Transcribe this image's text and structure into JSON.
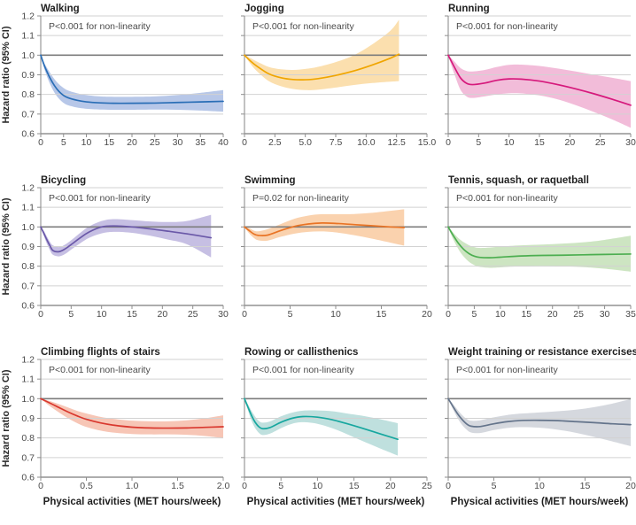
{
  "figure": {
    "ylabel": "Hazard ratio (95% CI)",
    "xlabel": "Physical activities (MET hours/week)",
    "y_tick_labels": [
      "1.2",
      "1.1",
      "1.0",
      "0.9",
      "0.8",
      "0.7",
      "0.6"
    ],
    "ylim": [
      0.6,
      1.2
    ],
    "reference_line": 1.0,
    "grid_color": "#d2d2d2",
    "ref_line_color": "#7c7c7c",
    "axis_color": "#8f8f8f",
    "legend_position": "none",
    "grid": "horizontal-only"
  },
  "chart_data": [
    {
      "type": "line",
      "title": "Walking",
      "annotation": "P<0.001 for non-linearity",
      "line_color": "#2a6eb6",
      "band_color": "#b7c7e8",
      "xlim": [
        0,
        40
      ],
      "x_tick_labels": [
        "0",
        "5",
        "10",
        "15",
        "20",
        "25",
        "30",
        "35",
        "40"
      ],
      "x": [
        0,
        0.5,
        1,
        2,
        3,
        4,
        5,
        6,
        8,
        10,
        13,
        16,
        20,
        25,
        30,
        35,
        40
      ],
      "hr": [
        1.0,
        0.965,
        0.935,
        0.885,
        0.845,
        0.815,
        0.795,
        0.783,
        0.77,
        0.762,
        0.757,
        0.755,
        0.755,
        0.756,
        0.759,
        0.762,
        0.765
      ],
      "lower": [
        1.0,
        0.955,
        0.915,
        0.855,
        0.81,
        0.778,
        0.757,
        0.745,
        0.733,
        0.727,
        0.723,
        0.722,
        0.722,
        0.723,
        0.722,
        0.718,
        0.712
      ],
      "upper": [
        1.0,
        0.975,
        0.95,
        0.912,
        0.878,
        0.852,
        0.833,
        0.82,
        0.806,
        0.797,
        0.79,
        0.788,
        0.788,
        0.79,
        0.797,
        0.808,
        0.822
      ]
    },
    {
      "type": "line",
      "title": "Jogging",
      "annotation": "P<0.001 for non-linearity",
      "line_color": "#f0a500",
      "band_color": "#fbdfae",
      "xlim": [
        0,
        15
      ],
      "x_tick_labels": [
        "0",
        "2.5",
        "5.0",
        "7.5",
        "10.0",
        "12.5",
        "15.0"
      ],
      "x": [
        0,
        0.5,
        1,
        2,
        3,
        4,
        5,
        6,
        7.5,
        9,
        10.5,
        12,
        12.7
      ],
      "hr": [
        1.0,
        0.97,
        0.945,
        0.905,
        0.885,
        0.876,
        0.875,
        0.88,
        0.897,
        0.92,
        0.95,
        0.985,
        1.005
      ],
      "lower": [
        1.0,
        0.955,
        0.92,
        0.868,
        0.842,
        0.828,
        0.822,
        0.824,
        0.835,
        0.848,
        0.858,
        0.865,
        0.868
      ],
      "upper": [
        1.0,
        0.985,
        0.968,
        0.94,
        0.928,
        0.925,
        0.93,
        0.94,
        0.965,
        1.0,
        1.055,
        1.125,
        1.18
      ]
    },
    {
      "type": "line",
      "title": "Running",
      "annotation": "P<0.001 for non-linearity",
      "line_color": "#d6197c",
      "band_color": "#f2bcd9",
      "xlim": [
        0,
        30
      ],
      "x_tick_labels": [
        "0",
        "5",
        "10",
        "15",
        "20",
        "25",
        "30"
      ],
      "x": [
        0,
        0.5,
        1,
        2,
        3,
        4,
        6,
        8,
        10,
        12,
        15,
        18,
        21,
        24,
        27,
        30
      ],
      "hr": [
        1.0,
        0.97,
        0.94,
        0.885,
        0.857,
        0.85,
        0.858,
        0.872,
        0.879,
        0.878,
        0.868,
        0.85,
        0.828,
        0.803,
        0.775,
        0.745
      ],
      "lower": [
        1.0,
        0.95,
        0.905,
        0.825,
        0.79,
        0.782,
        0.79,
        0.8,
        0.806,
        0.805,
        0.795,
        0.775,
        0.745,
        0.71,
        0.672,
        0.63
      ],
      "upper": [
        1.0,
        0.985,
        0.968,
        0.935,
        0.92,
        0.917,
        0.925,
        0.94,
        0.951,
        0.952,
        0.945,
        0.932,
        0.917,
        0.9,
        0.885,
        0.868
      ]
    },
    {
      "type": "line",
      "title": "Bicycling",
      "annotation": "P<0.001 for non-linearity",
      "line_color": "#6a58a8",
      "band_color": "#c6bfe3",
      "xlim": [
        0,
        30
      ],
      "x_tick_labels": [
        "0",
        "5",
        "10",
        "15",
        "20",
        "25",
        "30"
      ],
      "x": [
        0,
        0.5,
        1,
        1.5,
        2,
        3,
        4,
        5,
        6.5,
        8,
        10,
        12,
        15,
        18,
        21,
        24,
        28
      ],
      "hr": [
        1.0,
        0.968,
        0.935,
        0.905,
        0.88,
        0.874,
        0.888,
        0.91,
        0.945,
        0.975,
        1.0,
        1.005,
        1.0,
        0.99,
        0.978,
        0.965,
        0.945
      ],
      "lower": [
        1.0,
        0.955,
        0.915,
        0.882,
        0.858,
        0.85,
        0.862,
        0.885,
        0.917,
        0.945,
        0.967,
        0.975,
        0.97,
        0.955,
        0.935,
        0.912,
        0.845
      ],
      "upper": [
        1.0,
        0.98,
        0.952,
        0.925,
        0.906,
        0.897,
        0.91,
        0.932,
        0.97,
        1.003,
        1.03,
        1.04,
        1.035,
        1.028,
        1.025,
        1.03,
        1.062
      ]
    },
    {
      "type": "line",
      "title": "Swimming",
      "annotation": "P=0.02 for non-linearity",
      "line_color": "#e97425",
      "band_color": "#fad2ae",
      "xlim": [
        0,
        20
      ],
      "x_tick_labels": [
        "0",
        "5",
        "10",
        "15",
        "20"
      ],
      "x": [
        0,
        0.5,
        1,
        1.5,
        2.5,
        4,
        5.5,
        7,
        8.5,
        10,
        12,
        14,
        16,
        17.5
      ],
      "hr": [
        1.0,
        0.982,
        0.965,
        0.957,
        0.958,
        0.982,
        1.003,
        1.015,
        1.02,
        1.018,
        1.012,
        1.006,
        1.0,
        0.997
      ],
      "lower": [
        1.0,
        0.968,
        0.945,
        0.932,
        0.93,
        0.95,
        0.966,
        0.975,
        0.977,
        0.972,
        0.958,
        0.94,
        0.92,
        0.905
      ],
      "upper": [
        1.0,
        0.994,
        0.982,
        0.978,
        0.988,
        1.015,
        1.042,
        1.058,
        1.065,
        1.065,
        1.066,
        1.072,
        1.082,
        1.09
      ]
    },
    {
      "type": "line",
      "title": "Tennis, squash, or raquetball",
      "annotation": "P<0.001 for non-linearity",
      "line_color": "#4cae50",
      "band_color": "#cde5c2",
      "xlim": [
        0,
        35
      ],
      "x_tick_labels": [
        "0",
        "5",
        "10",
        "15",
        "20",
        "25",
        "30",
        "35"
      ],
      "x": [
        0,
        0.5,
        1,
        2,
        3,
        4,
        5,
        6,
        8,
        10,
        14,
        18,
        22,
        26,
        30,
        35
      ],
      "hr": [
        1.0,
        0.977,
        0.955,
        0.915,
        0.885,
        0.864,
        0.851,
        0.845,
        0.843,
        0.846,
        0.852,
        0.855,
        0.856,
        0.858,
        0.86,
        0.862
      ],
      "lower": [
        1.0,
        0.965,
        0.935,
        0.885,
        0.848,
        0.822,
        0.806,
        0.797,
        0.792,
        0.794,
        0.8,
        0.802,
        0.8,
        0.795,
        0.787,
        0.772
      ],
      "upper": [
        1.0,
        0.985,
        0.97,
        0.942,
        0.922,
        0.907,
        0.897,
        0.893,
        0.895,
        0.9,
        0.906,
        0.91,
        0.915,
        0.922,
        0.934,
        0.955
      ]
    },
    {
      "type": "line",
      "title": "Climbing flights of stairs",
      "annotation": "P<0.001 for non-linearity",
      "line_color": "#d9382e",
      "band_color": "#f7c6b6",
      "xlim": [
        0,
        2
      ],
      "x_tick_labels": [
        "0",
        "0.5",
        "1.0",
        "1.5",
        "2.0"
      ],
      "x": [
        0,
        0.1,
        0.2,
        0.3,
        0.4,
        0.5,
        0.65,
        0.8,
        1.0,
        1.2,
        1.4,
        1.6,
        1.8,
        2.0
      ],
      "hr": [
        1.0,
        0.978,
        0.955,
        0.932,
        0.912,
        0.895,
        0.877,
        0.865,
        0.855,
        0.851,
        0.85,
        0.851,
        0.854,
        0.857
      ],
      "lower": [
        1.0,
        0.962,
        0.93,
        0.9,
        0.875,
        0.856,
        0.838,
        0.827,
        0.82,
        0.818,
        0.818,
        0.816,
        0.81,
        0.8
      ],
      "upper": [
        1.0,
        0.988,
        0.972,
        0.955,
        0.938,
        0.925,
        0.908,
        0.897,
        0.888,
        0.885,
        0.885,
        0.89,
        0.9,
        0.915
      ]
    },
    {
      "type": "line",
      "title": "Rowing or callisthenics",
      "annotation": "P<0.001 for non-linearity",
      "line_color": "#17a79f",
      "band_color": "#bfe0de",
      "xlim": [
        0,
        25
      ],
      "x_tick_labels": [
        "0",
        "5",
        "10",
        "15",
        "20",
        "25"
      ],
      "x": [
        0,
        0.5,
        1,
        1.5,
        2,
        2.5,
        3.5,
        5,
        6.5,
        8,
        10,
        12,
        14,
        16,
        18.5,
        21
      ],
      "hr": [
        1.0,
        0.955,
        0.912,
        0.878,
        0.856,
        0.847,
        0.853,
        0.88,
        0.9,
        0.909,
        0.906,
        0.893,
        0.873,
        0.851,
        0.822,
        0.793
      ],
      "lower": [
        1.0,
        0.938,
        0.885,
        0.848,
        0.825,
        0.815,
        0.822,
        0.85,
        0.872,
        0.88,
        0.872,
        0.85,
        0.82,
        0.787,
        0.748,
        0.71
      ],
      "upper": [
        1.0,
        0.97,
        0.936,
        0.907,
        0.886,
        0.878,
        0.884,
        0.91,
        0.929,
        0.939,
        0.94,
        0.936,
        0.925,
        0.914,
        0.896,
        0.875
      ]
    },
    {
      "type": "line",
      "title": "Weight training or resistance exercises",
      "annotation": "P<0.001 for non-linearity",
      "line_color": "#64748b",
      "band_color": "#d5d8de",
      "xlim": [
        0,
        20
      ],
      "x_tick_labels": [
        "0",
        "5",
        "10",
        "15",
        "20"
      ],
      "x": [
        0,
        0.5,
        1,
        1.5,
        2,
        2.5,
        3.5,
        5,
        6.5,
        8,
        10,
        12,
        14,
        16,
        18,
        20
      ],
      "hr": [
        1.0,
        0.962,
        0.925,
        0.895,
        0.872,
        0.86,
        0.858,
        0.872,
        0.883,
        0.889,
        0.89,
        0.888,
        0.883,
        0.878,
        0.872,
        0.868
      ],
      "lower": [
        1.0,
        0.948,
        0.903,
        0.868,
        0.843,
        0.828,
        0.825,
        0.84,
        0.851,
        0.855,
        0.852,
        0.842,
        0.826,
        0.805,
        0.782,
        0.758
      ],
      "upper": [
        1.0,
        0.975,
        0.945,
        0.918,
        0.898,
        0.888,
        0.89,
        0.905,
        0.917,
        0.924,
        0.93,
        0.936,
        0.944,
        0.957,
        0.975,
        0.998
      ]
    }
  ]
}
